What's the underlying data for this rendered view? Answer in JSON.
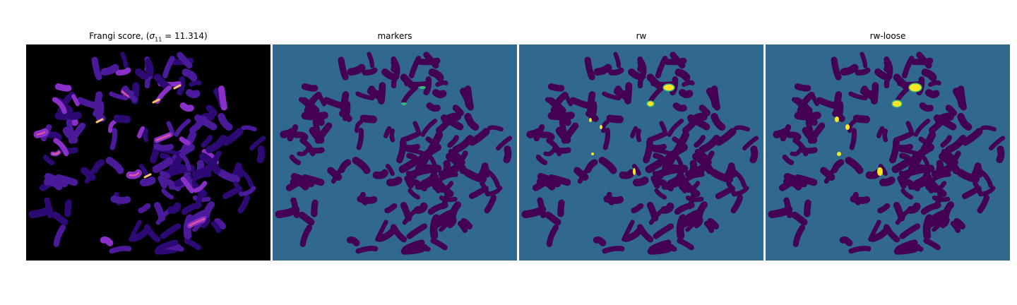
{
  "figure": {
    "panels": [
      {
        "id": "frangi",
        "title_prefix": "Frangi score, (",
        "title_symbol": "σ",
        "title_subscript": "11",
        "title_suffix": " = 11.314)",
        "colormap": "magma"
      },
      {
        "id": "markers",
        "title": "markers",
        "colormap": "viridis"
      },
      {
        "id": "rw",
        "title": "rw",
        "colormap": "viridis"
      },
      {
        "id": "rw-loose",
        "title": "rw-loose",
        "colormap": "viridis"
      }
    ],
    "colors": {
      "background_dark": "#000000",
      "frangi_tissue": "#2d0a73",
      "frangi_low": "#4a1a9a",
      "frangi_mid": "#8a30c8",
      "frangi_high": "#e0569a",
      "frangi_peak": "#fcc070",
      "label_background": "#31688e",
      "label_tissue": "#440154",
      "label_marker": "#35b779",
      "label_highlight": "#fde725"
    }
  }
}
